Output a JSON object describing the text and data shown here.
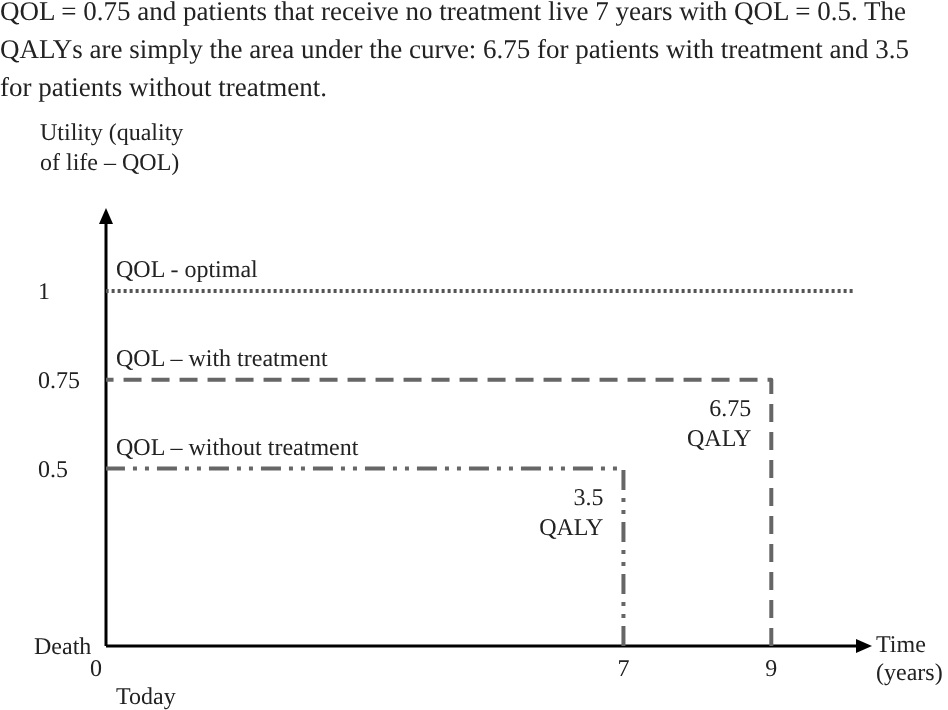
{
  "chart_data": {
    "type": "line",
    "xlabel": "Time (years)",
    "ylabel": "Utility (quality of life – QOL)",
    "xlim": [
      0,
      10.2
    ],
    "ylim": [
      0,
      1.2
    ],
    "xticks": [
      0,
      7,
      9
    ],
    "yticks": [
      {
        "value": 0,
        "label": "Death"
      },
      0.5,
      0.75,
      {
        "value": 1,
        "label": "1"
      }
    ],
    "subtitle": "QOL = 0.75 and patients that receive no treatment live 7 years with QOL = 0.5. The QALYs are simply the area under the curve: 6.75 for patients with treatment and 3.5 for patients without treatment.",
    "grid": false,
    "marker": "none",
    "series": [
      {
        "name": "QOL - optimal",
        "color": "#555555",
        "line_style": "dotted",
        "x": [
          0,
          10.1
        ],
        "values": [
          1,
          1
        ]
      },
      {
        "name": "QOL – with treatment",
        "color": "#666666",
        "line_style": "dashed",
        "x": [
          0,
          9,
          9
        ],
        "values": [
          0.75,
          0.75,
          0
        ]
      },
      {
        "name": "QOL – without treatment",
        "color": "#666666",
        "line_style": "dashdot",
        "x": [
          0,
          7,
          7
        ],
        "values": [
          0.5,
          0.5,
          0
        ]
      }
    ],
    "annotations": [
      "Today",
      {
        "text": "3.5 QALY",
        "x": 7,
        "y": 0.5
      },
      {
        "text": "6.75 QALY",
        "x": 9,
        "y": 0.75
      }
    ]
  }
}
